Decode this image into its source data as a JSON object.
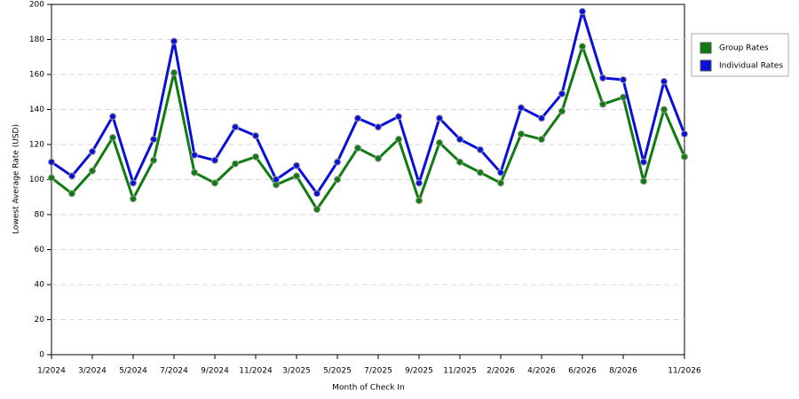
{
  "chart_data": {
    "type": "line",
    "x_label": "Month of Check In",
    "y_label": "Lowest Average Rate (USD)",
    "categories": [
      "1/2024",
      null,
      "3/2024",
      null,
      "5/2024",
      null,
      "7/2024",
      null,
      "9/2024",
      null,
      "11/2024",
      null,
      "3/2025",
      null,
      "5/2025",
      null,
      "7/2025",
      null,
      "9/2025",
      null,
      "11/2025",
      null,
      "2/2026",
      null,
      "4/2026",
      null,
      "6/2026",
      null,
      "8/2026",
      null,
      null,
      "11/2026"
    ],
    "series": [
      {
        "name": "Group Rates",
        "color": "#107b10",
        "values": [
          101,
          92,
          105,
          124,
          89,
          111,
          161,
          104,
          98,
          109,
          113,
          97,
          102,
          83,
          100,
          118,
          112,
          123,
          88,
          121,
          110,
          104,
          98,
          126,
          123,
          139,
          176,
          143,
          147,
          99,
          140,
          113
        ]
      },
      {
        "name": "Individual Rates",
        "color": "#0a10d8",
        "values": [
          110,
          102,
          116,
          136,
          98,
          123,
          179,
          114,
          111,
          130,
          125,
          100,
          108,
          92,
          110,
          135,
          130,
          136,
          98,
          135,
          123,
          117,
          104,
          141,
          135,
          149,
          196,
          158,
          157,
          110,
          156,
          126
        ]
      }
    ],
    "ylim": [
      0,
      200
    ],
    "yticks": [
      0,
      20,
      40,
      60,
      80,
      100,
      120,
      140,
      160,
      180,
      200
    ],
    "grid": true,
    "legend": "right"
  }
}
